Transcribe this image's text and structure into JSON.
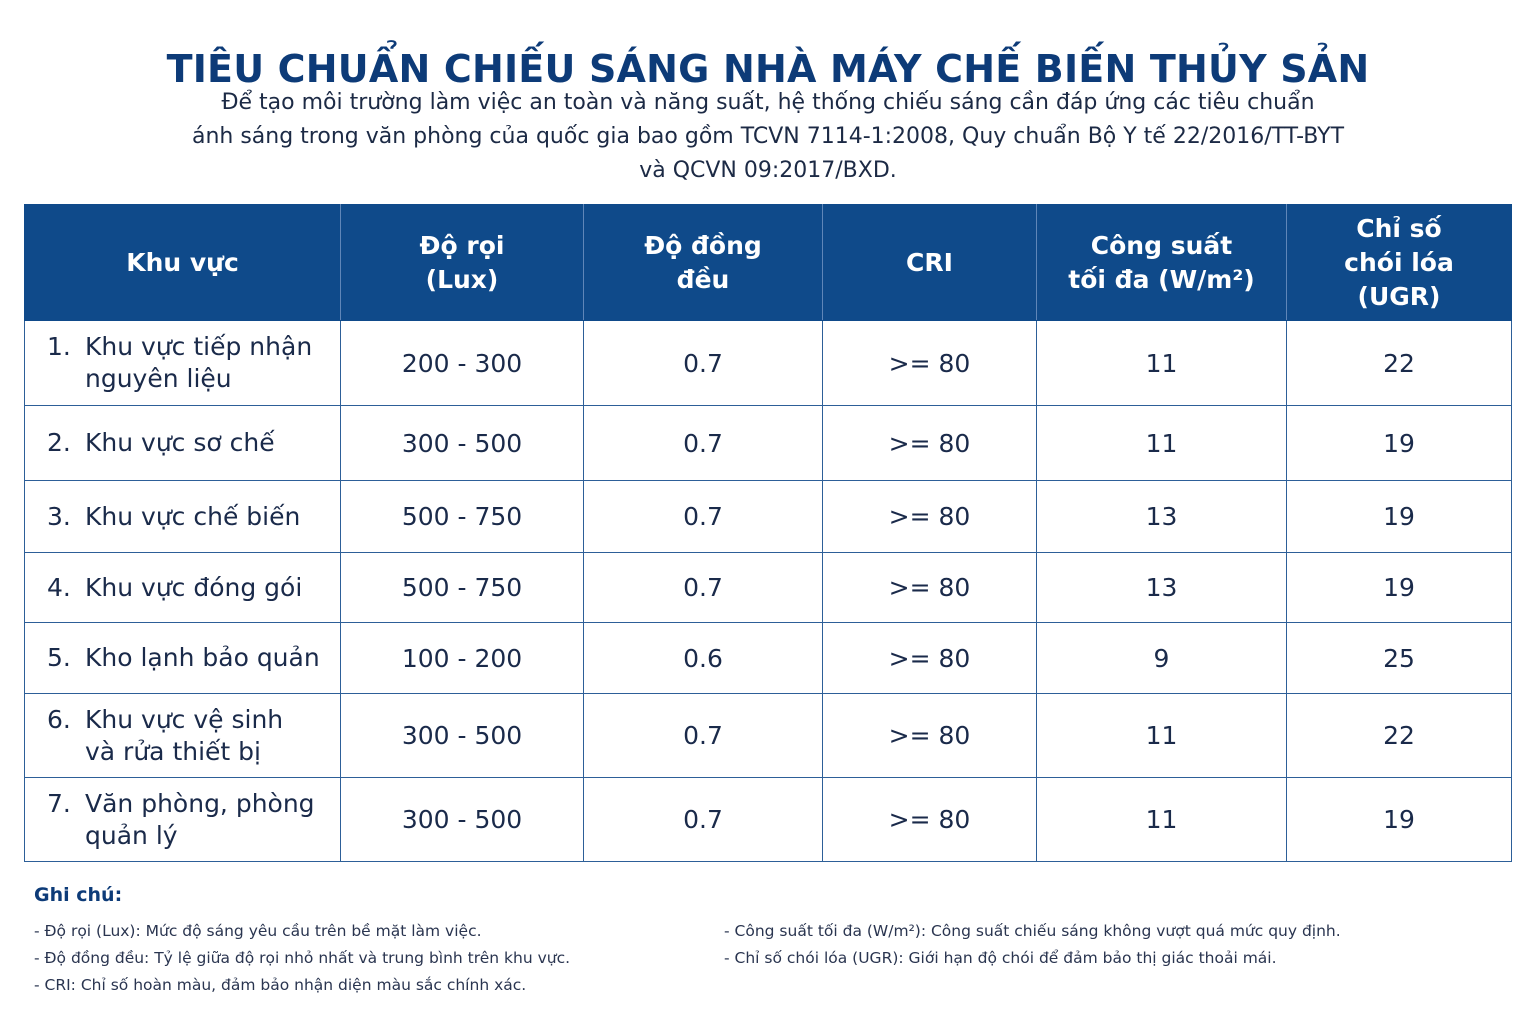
{
  "title": "TIÊU CHUẨN CHIẾU SÁNG NHÀ MÁY CHẾ BIẾN THỦY SẢN",
  "intro": {
    "line1": "Để tạo môi trường làm việc an toàn và năng suất, hệ thống chiếu sáng cần đáp ứng các tiêu chuẩn",
    "line2": "ánh sáng trong văn phòng của quốc gia bao gồm TCVN 7114-1:2008, Quy chuẩn Bộ Y tế 22/2016/TT-BYT",
    "line3": "và QCVN 09:2017/BXD."
  },
  "table": {
    "headers": [
      {
        "lines": [
          "Khu vực"
        ]
      },
      {
        "lines": [
          "Độ rọi",
          "(Lux)"
        ]
      },
      {
        "lines": [
          "Độ đồng",
          "đều"
        ]
      },
      {
        "lines": [
          "CRI"
        ]
      },
      {
        "lines": [
          "Công suất",
          "tối đa (W/m²)"
        ]
      },
      {
        "lines": [
          "Chỉ số",
          "chói lóa",
          "(UGR)"
        ]
      }
    ],
    "rows": [
      {
        "num": "1.",
        "area_l1": "Khu vực tiếp nhận",
        "area_l2": "nguyên liệu",
        "lux": "200 - 300",
        "uniformity": "0.7",
        "cri": ">= 80",
        "power": "11",
        "ugr": "22"
      },
      {
        "num": "2.",
        "area_l1": "Khu vực sơ chế",
        "area_l2": "",
        "lux": "300 - 500",
        "uniformity": "0.7",
        "cri": ">= 80",
        "power": "11",
        "ugr": "19"
      },
      {
        "num": "3.",
        "area_l1": "Khu vực chế biến",
        "area_l2": "",
        "lux": "500 - 750",
        "uniformity": "0.7",
        "cri": ">= 80",
        "power": "13",
        "ugr": "19"
      },
      {
        "num": "4.",
        "area_l1": "Khu vực đóng gói",
        "area_l2": "",
        "lux": "500 - 750",
        "uniformity": "0.7",
        "cri": ">= 80",
        "power": "13",
        "ugr": "19"
      },
      {
        "num": "5.",
        "area_l1": "Kho lạnh bảo quản",
        "area_l2": "",
        "lux": "100 - 200",
        "uniformity": "0.6",
        "cri": ">= 80",
        "power": "9",
        "ugr": "25"
      },
      {
        "num": "6.",
        "area_l1": "Khu vực vệ sinh",
        "area_l2": "và rửa thiết bị",
        "lux": "300 - 500",
        "uniformity": "0.7",
        "cri": ">= 80",
        "power": "11",
        "ugr": "22"
      },
      {
        "num": "7.",
        "area_l1": "Văn phòng, phòng",
        "area_l2": "quản lý",
        "lux": "300 - 500",
        "uniformity": "0.7",
        "cri": ">= 80",
        "power": "11",
        "ugr": "19"
      }
    ]
  },
  "notes": {
    "title": "Ghi chú:",
    "left": [
      "- Độ rọi (Lux): Mức độ sáng yêu cầu trên bề mặt làm việc.",
      "- Độ đồng đều: Tỷ lệ giữa độ rọi nhỏ nhất và trung bình trên khu vực.",
      "- CRI: Chỉ số hoàn màu, đảm bảo nhận diện màu sắc chính xác."
    ],
    "right": [
      "- Công suất tối đa (W/m²): Công suất chiếu sáng không vượt quá mức quy định.",
      "- Chỉ số chói lóa (UGR): Giới hạn độ chói để đảm bảo thị giác thoải mái."
    ]
  },
  "colors": {
    "title": "#0d3b78",
    "header_bg": "#0f4a8a",
    "grid": "#2d5f98"
  }
}
